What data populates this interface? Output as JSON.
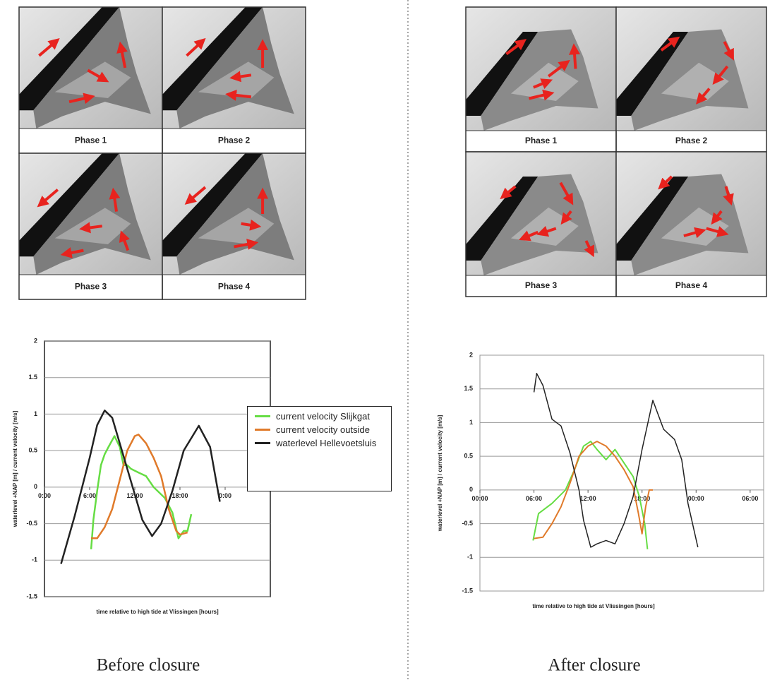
{
  "panels": [
    {
      "phases": [
        "Phase 1",
        "Phase 2",
        "Phase 3",
        "Phase 4"
      ],
      "caption": "Before closure"
    },
    {
      "phases": [
        "Phase 1",
        "Phase 2",
        "Phase 3",
        "Phase 4"
      ],
      "caption": "After closure"
    }
  ],
  "chart_data": [
    {
      "type": "line",
      "y_label": "waterlevel +NAP [m] / current velocity [m/s]",
      "x_label": "time relative to high tide at Vlissingen [hours]",
      "xlim": [
        0,
        30
      ],
      "ylim": [
        -1.5,
        2
      ],
      "xticks": [
        {
          "value": 0,
          "label": "0:00"
        },
        {
          "value": 6,
          "label": "6:00"
        },
        {
          "value": 12,
          "label": "12:00"
        },
        {
          "value": 18,
          "label": "18:00"
        },
        {
          "value": 24,
          "label": "0:00"
        }
      ],
      "yticks": [
        -1.5,
        -1,
        -0.5,
        0,
        0.5,
        1,
        1.5,
        2
      ],
      "grid": true,
      "legend": "right",
      "series": [
        {
          "name": "current velocity Slijkgat",
          "color": "#66dd44",
          "x": [
            6.2,
            6.5,
            7,
            7.5,
            8,
            8.5,
            9.3,
            10,
            10.5,
            11,
            11.5,
            12.5,
            13.5,
            14.5,
            16,
            17,
            17.8,
            18.5,
            19,
            19.5
          ],
          "values": [
            -0.85,
            -0.45,
            -0.05,
            0.3,
            0.45,
            0.55,
            0.7,
            0.55,
            0.3,
            0.3,
            0.25,
            0.2,
            0.15,
            0,
            -0.15,
            -0.35,
            -0.7,
            -0.6,
            -0.6,
            -0.37
          ]
        },
        {
          "name": "current velocity outside",
          "color": "#e07a2a",
          "x": [
            6.2,
            7,
            8,
            9,
            10,
            11,
            12,
            12.5,
            13.5,
            14.5,
            15.5,
            16.5,
            17.5,
            18,
            19
          ],
          "values": [
            -0.7,
            -0.7,
            -0.55,
            -0.3,
            0.1,
            0.5,
            0.7,
            0.72,
            0.6,
            0.4,
            0.15,
            -0.3,
            -0.6,
            -0.65,
            -0.62
          ]
        },
        {
          "name": "waterlevel Hellevoetsluis",
          "color": "#222222",
          "x": [
            2.2,
            4,
            6,
            7,
            8,
            9,
            10,
            12,
            13,
            14.3,
            15.5,
            17,
            18.5,
            20.5,
            22,
            23.3
          ],
          "values": [
            -1.05,
            -0.4,
            0.4,
            0.85,
            1.05,
            0.95,
            0.6,
            -0.1,
            -0.45,
            -0.67,
            -0.5,
            -0.05,
            0.5,
            0.84,
            0.55,
            -0.2
          ]
        }
      ]
    },
    {
      "type": "line",
      "y_label": "waterlevel +NAP [m] / current velocity [m/s]",
      "x_label": "time relative to high tide at Vlissingen [hours]",
      "xlim": [
        0,
        31.5
      ],
      "ylim": [
        -1.5,
        2
      ],
      "xticks": [
        {
          "value": 0,
          "label": "00:00"
        },
        {
          "value": 6,
          "label": "06:00"
        },
        {
          "value": 12,
          "label": "12:00"
        },
        {
          "value": 18,
          "label": "18:00"
        },
        {
          "value": 24,
          "label": "00:00"
        },
        {
          "value": 30,
          "label": "06:00"
        }
      ],
      "yticks": [
        -1.5,
        -1,
        -0.5,
        0,
        0.5,
        1,
        1.5,
        2
      ],
      "grid": true,
      "series": [
        {
          "color": "#66dd44",
          "x": [
            5.9,
            6.5,
            8,
            9.5,
            10.5,
            11.5,
            12.3,
            13,
            14,
            15,
            16,
            17,
            17.7,
            18.3,
            18.6
          ],
          "values": [
            -0.75,
            -0.35,
            -0.2,
            0,
            0.3,
            0.65,
            0.72,
            0.6,
            0.45,
            0.6,
            0.4,
            0.2,
            -0.1,
            -0.5,
            -0.88
          ]
        },
        {
          "color": "#e07a2a",
          "x": [
            6,
            7,
            8,
            9,
            10,
            11,
            12,
            13,
            14,
            15,
            16,
            17,
            17.6,
            18,
            18.4,
            18.8,
            19.2
          ],
          "values": [
            -0.72,
            -0.7,
            -0.5,
            -0.25,
            0.1,
            0.5,
            0.65,
            0.72,
            0.65,
            0.5,
            0.3,
            0.05,
            -0.35,
            -0.65,
            -0.25,
            0,
            0
          ]
        },
        {
          "color": "#222222",
          "x": [
            6,
            6.3,
            7,
            8,
            9,
            10,
            11,
            11.5,
            12.3,
            13,
            14,
            15,
            16,
            17,
            18,
            19.2,
            20.4,
            21.6,
            22.4,
            23.1,
            24.2
          ],
          "values": [
            1.45,
            1.73,
            1.55,
            1.05,
            0.95,
            0.55,
            0,
            -0.45,
            -0.85,
            -0.8,
            -0.75,
            -0.8,
            -0.5,
            -0.1,
            0.6,
            1.33,
            0.9,
            0.75,
            0.45,
            -0.2,
            -0.85
          ]
        }
      ]
    }
  ]
}
